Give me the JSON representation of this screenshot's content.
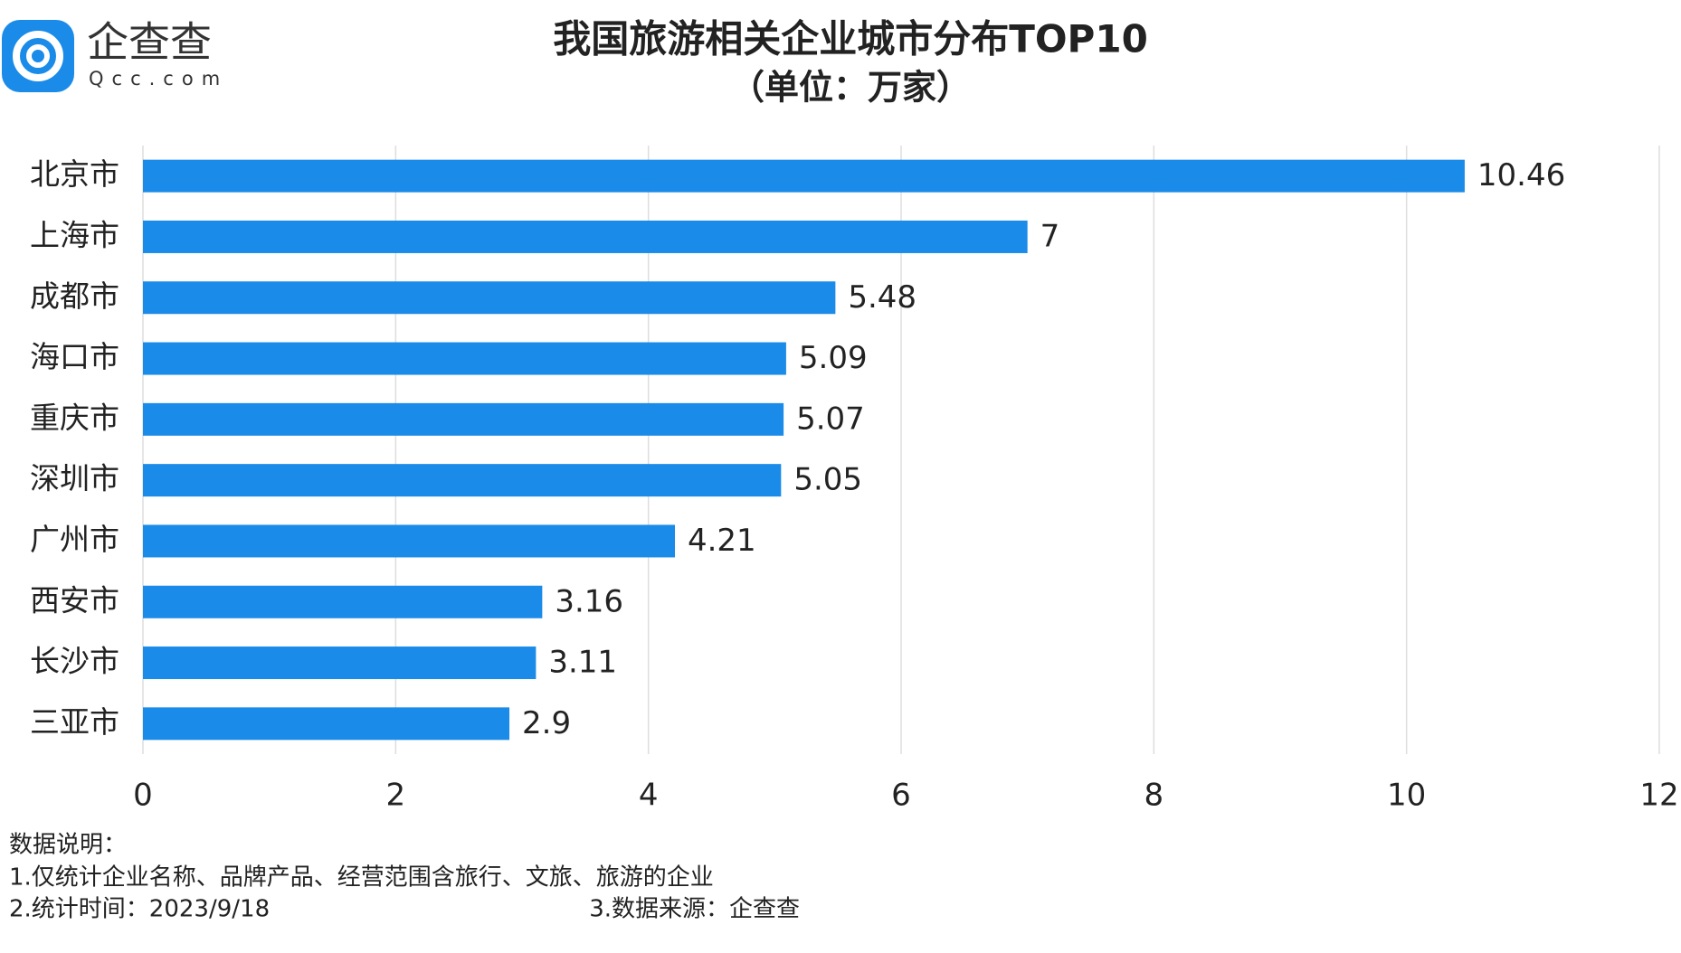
{
  "chart_data": {
    "type": "bar",
    "orientation": "horizontal",
    "title": "我国旅游相关企业城市分布TOP10",
    "subtitle": "（单位：万家）",
    "logo": {
      "name": "企查查",
      "site": "Qcc.com"
    },
    "categories": [
      "北京市",
      "上海市",
      "成都市",
      "海口市",
      "重庆市",
      "深圳市",
      "广州市",
      "西安市",
      "长沙市",
      "三亚市"
    ],
    "values": [
      10.46,
      7,
      5.48,
      5.09,
      5.07,
      5.05,
      4.21,
      3.16,
      3.11,
      2.9
    ],
    "color": "#1a8be8",
    "xlim": [
      0,
      12
    ],
    "xticks": [
      0,
      2,
      4,
      6,
      8,
      10,
      12
    ],
    "grid": true,
    "notes": [
      "数据说明：",
      "1.仅统计企业名称、品牌产品、经营范围含旅行、文旅、旅游的企业",
      "2.统计时间：2023/9/18",
      "3.数据来源：企查查"
    ]
  }
}
